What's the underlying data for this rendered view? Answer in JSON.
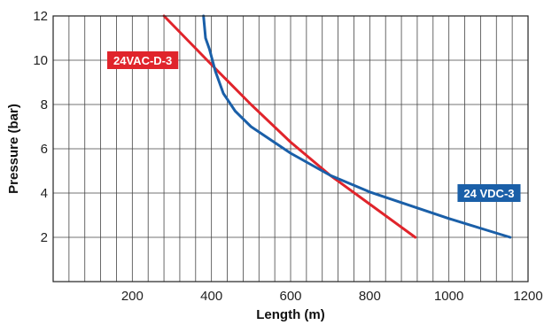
{
  "chart_data": {
    "type": "line",
    "xlabel": "Length (m)",
    "ylabel": "Pressure (bar)",
    "xlim": [
      0,
      1200
    ],
    "ylim": [
      0,
      12
    ],
    "x_ticks": [
      200,
      400,
      600,
      800,
      1000,
      1200
    ],
    "y_ticks": [
      2,
      4,
      6,
      8,
      10,
      12
    ],
    "x_minor_step": 40,
    "grid": true,
    "series": [
      {
        "name": "24VAC-D-3",
        "color": "#e0242b",
        "points": [
          [
            280,
            12
          ],
          [
            400,
            9.8
          ],
          [
            500,
            8.0
          ],
          [
            600,
            6.3
          ],
          [
            700,
            4.8
          ],
          [
            800,
            3.5
          ],
          [
            915,
            2.0
          ]
        ]
      },
      {
        "name": "24 VDC-3",
        "color": "#1a5fa8",
        "points": [
          [
            380,
            12
          ],
          [
            385,
            11
          ],
          [
            395,
            10.5
          ],
          [
            410,
            9.5
          ],
          [
            430,
            8.5
          ],
          [
            460,
            7.7
          ],
          [
            500,
            7.0
          ],
          [
            600,
            5.8
          ],
          [
            700,
            4.8
          ],
          [
            800,
            4.05
          ],
          [
            900,
            3.45
          ],
          [
            1000,
            2.85
          ],
          [
            1100,
            2.3
          ],
          [
            1155,
            2.0
          ]
        ]
      }
    ]
  }
}
